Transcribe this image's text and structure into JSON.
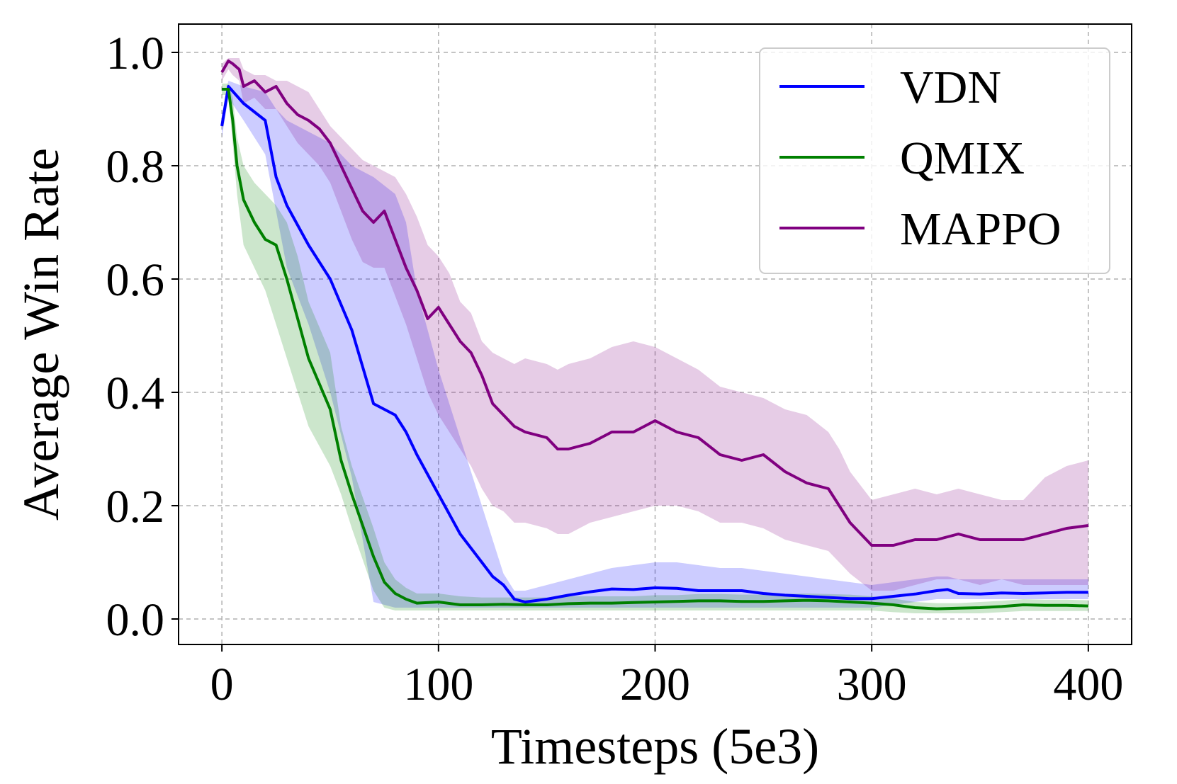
{
  "chart_data": {
    "type": "line",
    "title": "",
    "xlabel": "Timesteps (5e3)",
    "ylabel": "Average Win Rate",
    "xlim": [
      -20,
      420
    ],
    "ylim": [
      -0.045,
      1.05
    ],
    "xticks": [
      0,
      100,
      200,
      300,
      400
    ],
    "xtick_labels": [
      "0",
      "100",
      "200",
      "300",
      "400"
    ],
    "yticks": [
      0.0,
      0.2,
      0.4,
      0.6,
      0.8,
      1.0
    ],
    "ytick_labels": [
      "0.0",
      "0.2",
      "0.4",
      "0.6",
      "0.8",
      "1.0"
    ],
    "grid": true,
    "legend_position": "top-right",
    "series": [
      {
        "name": "VDN",
        "color": "#0000ff",
        "x": [
          0,
          3,
          10,
          20,
          25,
          30,
          40,
          50,
          60,
          70,
          80,
          85,
          90,
          100,
          110,
          120,
          125,
          130,
          135,
          140,
          150,
          160,
          170,
          180,
          190,
          200,
          210,
          220,
          230,
          240,
          250,
          260,
          270,
          280,
          290,
          300,
          310,
          320,
          330,
          335,
          340,
          350,
          360,
          370,
          380,
          390,
          400
        ],
        "y": [
          0.87,
          0.94,
          0.91,
          0.88,
          0.78,
          0.73,
          0.66,
          0.6,
          0.51,
          0.38,
          0.36,
          0.33,
          0.29,
          0.22,
          0.15,
          0.1,
          0.075,
          0.06,
          0.035,
          0.03,
          0.035,
          0.042,
          0.048,
          0.053,
          0.052,
          0.055,
          0.054,
          0.05,
          0.05,
          0.05,
          0.045,
          0.042,
          0.04,
          0.038,
          0.036,
          0.036,
          0.04,
          0.044,
          0.05,
          0.052,
          0.045,
          0.044,
          0.046,
          0.045,
          0.046,
          0.047,
          0.047
        ],
        "lower": [
          0.85,
          0.92,
          0.88,
          0.82,
          0.72,
          0.62,
          0.52,
          0.4,
          0.25,
          0.03,
          0.02,
          0.02,
          0.02,
          0.02,
          0.02,
          0.02,
          0.02,
          0.02,
          0.02,
          0.02,
          0.02,
          0.02,
          0.02,
          0.02,
          0.02,
          0.02,
          0.02,
          0.02,
          0.02,
          0.02,
          0.02,
          0.02,
          0.02,
          0.02,
          0.02,
          0.02,
          0.025,
          0.03,
          0.035,
          0.035,
          0.035,
          0.035,
          0.035,
          0.035,
          0.035,
          0.035,
          0.035
        ],
        "upper": [
          0.89,
          0.95,
          0.94,
          0.93,
          0.9,
          0.88,
          0.86,
          0.84,
          0.8,
          0.78,
          0.75,
          0.7,
          0.58,
          0.44,
          0.32,
          0.2,
          0.14,
          0.08,
          0.05,
          0.05,
          0.06,
          0.07,
          0.08,
          0.09,
          0.095,
          0.1,
          0.1,
          0.095,
          0.09,
          0.09,
          0.085,
          0.08,
          0.075,
          0.07,
          0.065,
          0.06,
          0.065,
          0.07,
          0.075,
          0.075,
          0.07,
          0.07,
          0.07,
          0.07,
          0.07,
          0.07,
          0.07
        ]
      },
      {
        "name": "QMIX",
        "color": "#008000",
        "x": [
          0,
          3,
          5,
          7,
          10,
          15,
          20,
          25,
          30,
          35,
          40,
          50,
          55,
          60,
          70,
          75,
          80,
          85,
          90,
          100,
          110,
          120,
          130,
          140,
          150,
          160,
          170,
          180,
          190,
          200,
          210,
          220,
          230,
          240,
          250,
          260,
          270,
          280,
          290,
          300,
          310,
          320,
          330,
          340,
          350,
          360,
          370,
          380,
          390,
          400
        ],
        "y": [
          0.935,
          0.935,
          0.88,
          0.8,
          0.74,
          0.7,
          0.67,
          0.66,
          0.6,
          0.53,
          0.46,
          0.37,
          0.28,
          0.22,
          0.11,
          0.065,
          0.045,
          0.035,
          0.028,
          0.03,
          0.025,
          0.025,
          0.026,
          0.025,
          0.025,
          0.027,
          0.028,
          0.028,
          0.029,
          0.03,
          0.031,
          0.032,
          0.032,
          0.031,
          0.031,
          0.032,
          0.033,
          0.032,
          0.03,
          0.028,
          0.025,
          0.02,
          0.018,
          0.019,
          0.02,
          0.022,
          0.025,
          0.024,
          0.024,
          0.023
        ],
        "lower": [
          0.925,
          0.925,
          0.84,
          0.75,
          0.66,
          0.62,
          0.58,
          0.52,
          0.46,
          0.4,
          0.34,
          0.27,
          0.22,
          0.16,
          0.05,
          0.02,
          0.015,
          0.015,
          0.015,
          0.015,
          0.015,
          0.015,
          0.015,
          0.015,
          0.015,
          0.015,
          0.015,
          0.015,
          0.015,
          0.015,
          0.015,
          0.015,
          0.015,
          0.015,
          0.015,
          0.015,
          0.015,
          0.015,
          0.015,
          0.015,
          0.012,
          0.01,
          0.01,
          0.01,
          0.01,
          0.012,
          0.014,
          0.014,
          0.014,
          0.014
        ],
        "upper": [
          0.945,
          0.945,
          0.92,
          0.85,
          0.8,
          0.77,
          0.75,
          0.73,
          0.7,
          0.64,
          0.56,
          0.47,
          0.34,
          0.27,
          0.16,
          0.1,
          0.07,
          0.055,
          0.045,
          0.045,
          0.04,
          0.038,
          0.038,
          0.038,
          0.038,
          0.04,
          0.04,
          0.04,
          0.04,
          0.042,
          0.042,
          0.044,
          0.044,
          0.043,
          0.043,
          0.044,
          0.045,
          0.044,
          0.043,
          0.04,
          0.036,
          0.03,
          0.028,
          0.028,
          0.03,
          0.032,
          0.035,
          0.034,
          0.034,
          0.033
        ]
      },
      {
        "name": "MAPPO",
        "color": "#800080",
        "x": [
          0,
          3,
          5,
          8,
          10,
          15,
          20,
          25,
          30,
          35,
          40,
          45,
          50,
          55,
          60,
          65,
          70,
          75,
          80,
          85,
          90,
          95,
          100,
          105,
          110,
          115,
          120,
          125,
          130,
          135,
          140,
          150,
          155,
          160,
          170,
          180,
          190,
          200,
          210,
          220,
          230,
          240,
          250,
          260,
          270,
          280,
          285,
          290,
          300,
          310,
          320,
          330,
          340,
          350,
          360,
          370,
          380,
          390,
          400
        ],
        "y": [
          0.965,
          0.985,
          0.98,
          0.97,
          0.94,
          0.95,
          0.93,
          0.94,
          0.91,
          0.89,
          0.88,
          0.865,
          0.84,
          0.8,
          0.76,
          0.72,
          0.7,
          0.72,
          0.67,
          0.62,
          0.58,
          0.53,
          0.55,
          0.52,
          0.49,
          0.47,
          0.43,
          0.38,
          0.36,
          0.34,
          0.33,
          0.32,
          0.3,
          0.3,
          0.31,
          0.33,
          0.33,
          0.35,
          0.33,
          0.32,
          0.29,
          0.28,
          0.29,
          0.26,
          0.24,
          0.23,
          0.2,
          0.17,
          0.13,
          0.13,
          0.14,
          0.14,
          0.15,
          0.14,
          0.14,
          0.14,
          0.15,
          0.16,
          0.165
        ],
        "lower": [
          0.95,
          0.97,
          0.96,
          0.95,
          0.91,
          0.92,
          0.9,
          0.9,
          0.87,
          0.84,
          0.82,
          0.8,
          0.77,
          0.72,
          0.67,
          0.63,
          0.62,
          0.62,
          0.57,
          0.52,
          0.46,
          0.4,
          0.36,
          0.33,
          0.3,
          0.27,
          0.23,
          0.2,
          0.19,
          0.17,
          0.17,
          0.16,
          0.15,
          0.15,
          0.17,
          0.18,
          0.19,
          0.2,
          0.2,
          0.19,
          0.17,
          0.17,
          0.16,
          0.14,
          0.13,
          0.12,
          0.1,
          0.08,
          0.05,
          0.05,
          0.06,
          0.07,
          0.07,
          0.06,
          0.07,
          0.06,
          0.06,
          0.06,
          0.06
        ],
        "upper": [
          0.98,
          0.99,
          0.99,
          0.99,
          0.97,
          0.96,
          0.96,
          0.95,
          0.95,
          0.94,
          0.93,
          0.9,
          0.87,
          0.85,
          0.83,
          0.81,
          0.8,
          0.79,
          0.78,
          0.75,
          0.71,
          0.66,
          0.64,
          0.61,
          0.56,
          0.54,
          0.49,
          0.47,
          0.46,
          0.45,
          0.46,
          0.45,
          0.44,
          0.45,
          0.46,
          0.48,
          0.49,
          0.48,
          0.46,
          0.44,
          0.41,
          0.4,
          0.39,
          0.37,
          0.36,
          0.33,
          0.3,
          0.26,
          0.21,
          0.22,
          0.23,
          0.22,
          0.23,
          0.22,
          0.21,
          0.21,
          0.25,
          0.27,
          0.28
        ]
      }
    ]
  }
}
